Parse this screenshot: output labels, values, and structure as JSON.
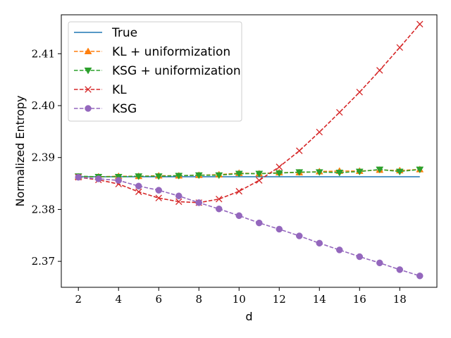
{
  "chart_data": {
    "type": "line",
    "title": "",
    "xlabel": "d",
    "ylabel": "Normalized Entropy",
    "xlim": [
      1.15,
      19.85
    ],
    "ylim": [
      2.365,
      2.4175
    ],
    "xticks": [
      2,
      4,
      6,
      8,
      10,
      12,
      14,
      16,
      18
    ],
    "yticks": [
      2.37,
      2.38,
      2.39,
      2.4,
      2.41
    ],
    "xtick_labels": [
      "2",
      "4",
      "6",
      "8",
      "10",
      "12",
      "14",
      "16",
      "18"
    ],
    "ytick_labels": [
      "2.37",
      "2.38",
      "2.39",
      "2.40",
      "2.41"
    ],
    "legend_position": "top-left",
    "x": [
      2,
      3,
      4,
      5,
      6,
      7,
      8,
      9,
      10,
      11,
      12,
      13,
      14,
      15,
      16,
      17,
      18,
      19
    ],
    "series": [
      {
        "name": "True",
        "color": "#1f77b4",
        "style": "solid",
        "marker": "none",
        "values": [
          2.3863,
          2.3863,
          2.3863,
          2.3863,
          2.3863,
          2.3863,
          2.3863,
          2.3863,
          2.3863,
          2.3863,
          2.3863,
          2.3863,
          2.3863,
          2.3863,
          2.3863,
          2.3863,
          2.3863,
          2.3863
        ]
      },
      {
        "name": "KL + uniformization",
        "color": "#ff7f0e",
        "style": "dashed",
        "marker": "triangle-up",
        "values": [
          2.3863,
          2.3863,
          2.3864,
          2.3864,
          2.3865,
          2.3865,
          2.3866,
          2.3867,
          2.387,
          2.3869,
          2.3871,
          2.3871,
          2.3873,
          2.3874,
          2.3874,
          2.3876,
          2.3875,
          2.3877
        ]
      },
      {
        "name": "KSG + uniformization",
        "color": "#2ca02c",
        "style": "dashed",
        "marker": "triangle-down",
        "values": [
          2.3864,
          2.3863,
          2.3863,
          2.3864,
          2.3864,
          2.3865,
          2.3866,
          2.3866,
          2.3869,
          2.3869,
          2.387,
          2.3872,
          2.3872,
          2.3871,
          2.3873,
          2.3877,
          2.3873,
          2.3877
        ]
      },
      {
        "name": "KL",
        "color": "#d62728",
        "style": "dashed",
        "marker": "x",
        "values": [
          2.3862,
          2.3857,
          2.3849,
          2.3834,
          2.3822,
          2.3815,
          2.3813,
          2.382,
          2.3835,
          2.3856,
          2.3882,
          2.3913,
          2.3949,
          2.3987,
          2.4026,
          2.4068,
          2.4112,
          2.4157
        ]
      },
      {
        "name": "KSG",
        "color": "#9467bd",
        "style": "dashed",
        "marker": "circle",
        "values": [
          2.3862,
          2.3859,
          2.3856,
          2.3845,
          2.3837,
          2.3826,
          2.3813,
          2.3801,
          2.3788,
          2.3774,
          2.3762,
          2.3749,
          2.3735,
          2.3722,
          2.3709,
          2.3697,
          2.3684,
          2.3672
        ]
      }
    ]
  }
}
